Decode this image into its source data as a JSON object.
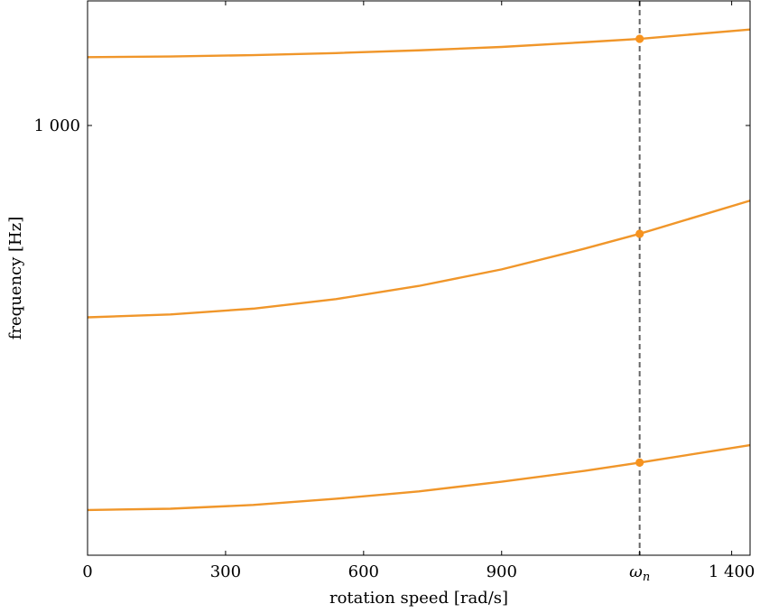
{
  "chart_data": {
    "type": "line",
    "title": "",
    "xlabel": "rotation speed [rad/s]",
    "ylabel": "frequency [Hz]",
    "xlim": [
      0,
      1440
    ],
    "ylim": [
      565,
      1180
    ],
    "x_scale": "linear",
    "y_scale": "log",
    "grid": false,
    "x_ticks": [
      {
        "value": 0,
        "label": "0"
      },
      {
        "value": 300,
        "label": "300"
      },
      {
        "value": 600,
        "label": "600"
      },
      {
        "value": 900,
        "label": "900"
      },
      {
        "value": 1200,
        "label": "ω_n",
        "label_base": "ω",
        "label_sub": "n"
      },
      {
        "value": 1400,
        "label": "1 400"
      }
    ],
    "y_ticks": [
      {
        "value": 1000,
        "label": "1 000"
      }
    ],
    "vline": {
      "x": 1200,
      "style": "dashed",
      "color": "#666666"
    },
    "line_color": "#f0962a",
    "marker_color": "#f7931e",
    "x": [
      0,
      180,
      360,
      540,
      720,
      900,
      1080,
      1200,
      1440
    ],
    "series": [
      {
        "values": [
          600,
          601,
          604,
          609,
          615,
          623,
          632,
          639,
          654
        ]
      },
      {
        "values": [
          775,
          778,
          784,
          794,
          808,
          826,
          849,
          866,
          905
        ]
      },
      {
        "values": [
          1095,
          1096,
          1098,
          1101,
          1105,
          1110,
          1117,
          1122,
          1136
        ]
      }
    ],
    "markers": [
      {
        "x": 1200,
        "y": 639
      },
      {
        "x": 1200,
        "y": 866
      },
      {
        "x": 1200,
        "y": 1122
      }
    ]
  }
}
